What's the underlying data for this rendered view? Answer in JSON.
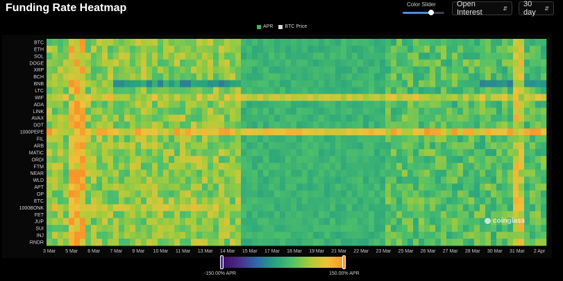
{
  "header": {
    "title": "Funding Rate Heatmap",
    "slider_label": "Color Slider",
    "metric_select": "Open Interest",
    "range_select": "30 day"
  },
  "colors": {
    "accent": "#4a90e2",
    "high": "#f7962b",
    "low": "#3b0f5f",
    "neutral": "#27a37f"
  },
  "legend": [
    {
      "label": "APR",
      "color": "#3fb950"
    },
    {
      "label": "BTC Price",
      "color": "#d8d8d8"
    }
  ],
  "color_scale": {
    "min_label": "-150.00% APR",
    "max_label": "150.00% APR",
    "min_value": -150,
    "max_value": 150
  },
  "watermark": "coinglass",
  "chart_data": {
    "type": "heatmap",
    "title": "Funding Rate Heatmap",
    "value_unit": "APR %",
    "rows": [
      "BTC",
      "ETH",
      "SOL",
      "DOGE",
      "XRP",
      "BCH",
      "BNB",
      "LTC",
      "WIF",
      "ADA",
      "LINK",
      "AVAX",
      "DOT",
      "1000PEPE",
      "FIL",
      "ARB",
      "MATIC",
      "ORDI",
      "FTM",
      "NEAR",
      "WLD",
      "APT",
      "OP",
      "ETC",
      "1000BONK",
      "FET",
      "JUP",
      "SUI",
      "INJ",
      "RNDR"
    ],
    "x_tick_labels": [
      "3 Mar",
      "5 Mar",
      "6 Mar",
      "7 Mar",
      "9 Mar",
      "10 Mar",
      "11 Mar",
      "13 Mar",
      "14 Mar",
      "15 Mar",
      "17 Mar",
      "18 Mar",
      "19 Mar",
      "21 Mar",
      "22 Mar",
      "23 Mar",
      "25 Mar",
      "26 Mar",
      "27 Mar",
      "28 Mar",
      "30 Mar",
      "31 Mar",
      "2 Apr"
    ],
    "columns": 90,
    "zones": [
      {
        "row": "all",
        "from_col": 0,
        "to_col": 3,
        "apr": 60
      },
      {
        "row": "all",
        "from_col": 4,
        "to_col": 6,
        "apr": 120
      },
      {
        "row": "all",
        "from_col": 7,
        "to_col": 34,
        "apr": 60
      },
      {
        "row": "all",
        "from_col": 35,
        "to_col": 60,
        "apr": 10
      },
      {
        "row": "all",
        "from_col": 61,
        "to_col": 89,
        "apr": 30
      },
      {
        "row": "1000PEPE",
        "from_col": 0,
        "to_col": 89,
        "apr": 110
      },
      {
        "row": "WIF",
        "from_col": 0,
        "to_col": 89,
        "apr": 85
      },
      {
        "row": "1000BONK",
        "from_col": 0,
        "to_col": 34,
        "apr": 90
      },
      {
        "row": "BNB",
        "from_col": 12,
        "to_col": 34,
        "apr": -25
      },
      {
        "row": "BNB",
        "from_col": 78,
        "to_col": 89,
        "apr": -35
      },
      {
        "row": "all",
        "from_col": 84,
        "to_col": 85,
        "apr": 95
      }
    ]
  }
}
